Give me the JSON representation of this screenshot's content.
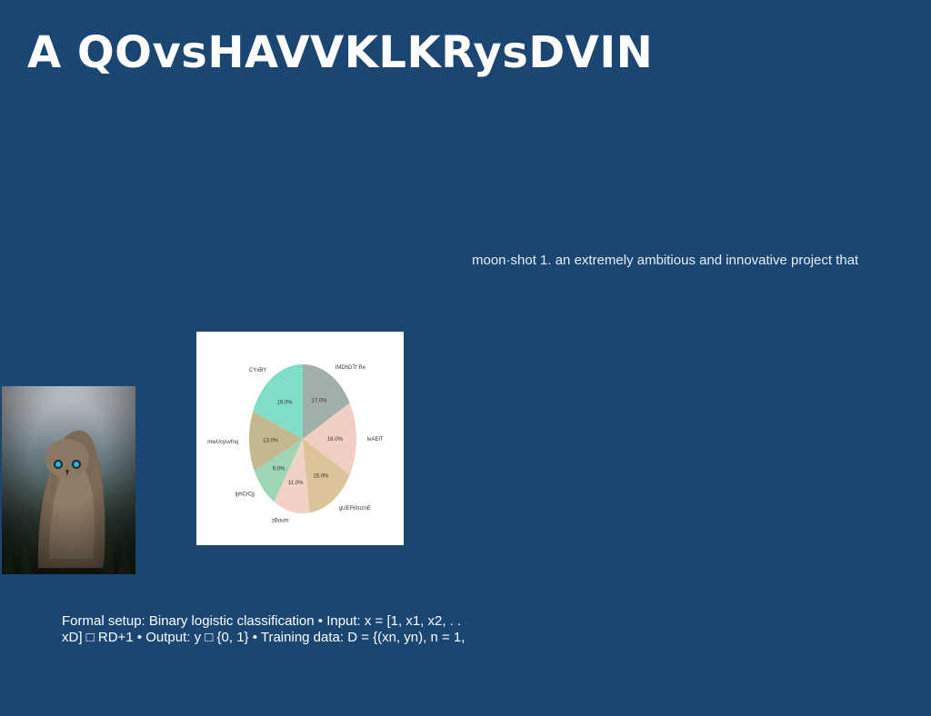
{
  "slide": {
    "title": "A QOvsHAVVKLKRysDVIN",
    "quote": "moon·shot 1. an extremely ambitious and innovative project that",
    "formal_line1": "Formal setup: Binary logistic classification • Input: x = [1, x1, x2, . .",
    "formal_line2": "xD] □ RD+1 • Output: y □ {0, 1} • Training data: D = {(xn, yn), n = 1,"
  },
  "photo": {
    "subject": "owl-photo"
  },
  "chart_data": {
    "type": "pie",
    "title": "",
    "categories": [
      "lMDhDTf Re",
      "leAElT",
      "gUEFKhrznE",
      "zBoum",
      "lphCrCjj",
      "mwUcysvfnq",
      "CYxBY"
    ],
    "values": [
      17.0,
      16.0,
      15.0,
      11.0,
      9.0,
      13.0,
      19.0
    ],
    "value_labels": [
      "17.0%",
      "16.0%",
      "15.0%",
      "11.0%",
      "9.0%",
      "13.0%",
      "19.0%"
    ],
    "colors": [
      "#a2aeaa",
      "#f0cfc2",
      "#dcc39a",
      "#f2d2c4",
      "#9fd4b6",
      "#c5b88f",
      "#7fdec7"
    ],
    "start_angle_deg": 90,
    "direction": "clockwise"
  }
}
